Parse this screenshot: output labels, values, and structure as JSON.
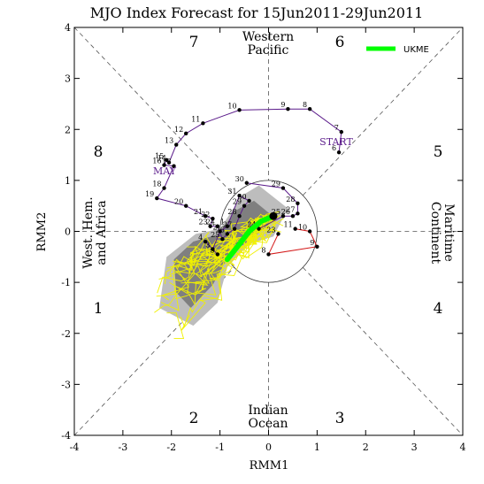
{
  "chart_data": {
    "type": "scatter",
    "title": "MJO Index Forecast for 15Jun2011-29Jun2011",
    "xlabel": "RMM1",
    "ylabel": "RMM2",
    "xlim": [
      -4,
      4
    ],
    "ylim": [
      -4,
      4
    ],
    "xticks": [
      "-4",
      "-3",
      "-2",
      "-1",
      "0",
      "1",
      "2",
      "3",
      "4"
    ],
    "yticks": [
      "-4",
      "-3",
      "-2",
      "-1",
      "0",
      "1",
      "2",
      "3",
      "4"
    ],
    "phase_numbers": [
      "1",
      "2",
      "3",
      "4",
      "5",
      "6",
      "7",
      "8"
    ],
    "region_labels": {
      "top": [
        "Western",
        "Pacific"
      ],
      "bottom": [
        "Indian",
        "Ocean"
      ],
      "left": [
        "West. Hem.",
        "and Africa"
      ],
      "right": [
        "Maritime",
        "Continent"
      ]
    },
    "legend": {
      "label": "UKME",
      "color": "#00ff00",
      "position": "top-right"
    },
    "observed_labels": {
      "start": "START",
      "month": "MAY"
    },
    "observed": {
      "color": "#5a1a8a",
      "points": [
        {
          "d": "6",
          "x": 1.45,
          "y": 1.55
        },
        {
          "d": "7",
          "x": 1.5,
          "y": 1.95
        },
        {
          "d": "8",
          "x": 0.85,
          "y": 2.4
        },
        {
          "d": "9",
          "x": 0.4,
          "y": 2.4
        },
        {
          "d": "10",
          "x": -0.6,
          "y": 2.38
        },
        {
          "d": "11",
          "x": -1.35,
          "y": 2.12
        },
        {
          "d": "12",
          "x": -1.7,
          "y": 1.92
        },
        {
          "d": "13",
          "x": -1.9,
          "y": 1.7
        },
        {
          "d": "14",
          "x": -2.05,
          "y": 1.35
        },
        {
          "d": "15",
          "x": -2.1,
          "y": 1.4
        },
        {
          "d": "16",
          "x": -2.15,
          "y": 1.3
        },
        {
          "d": "17",
          "x": -1.95,
          "y": 1.28
        },
        {
          "d": "18",
          "x": -2.15,
          "y": 0.85
        },
        {
          "d": "19",
          "x": -2.3,
          "y": 0.65
        },
        {
          "d": "20",
          "x": -1.7,
          "y": 0.5
        },
        {
          "d": "21",
          "x": -1.3,
          "y": 0.3
        },
        {
          "d": "22",
          "x": -1.15,
          "y": 0.25
        },
        {
          "d": "23",
          "x": -1.2,
          "y": 0.1
        },
        {
          "d": "24",
          "x": -1.05,
          "y": 0.1
        },
        {
          "d": "25",
          "x": -0.95,
          "y": -0.15
        },
        {
          "d": "26",
          "x": -0.85,
          "y": -0.05
        },
        {
          "d": "27",
          "x": -0.7,
          "y": 0.05
        },
        {
          "d": "28",
          "x": -0.6,
          "y": 0.3
        },
        {
          "d": "29",
          "x": -0.5,
          "y": 0.5
        },
        {
          "d": "30",
          "x": -0.4,
          "y": 0.6
        },
        {
          "d": "31",
          "x": -0.6,
          "y": 0.7
        },
        {
          "d": "1",
          "x": -0.85,
          "y": 0.1
        },
        {
          "d": "2",
          "x": -1.0,
          "y": 0.0
        },
        {
          "d": "3",
          "x": -1.15,
          "y": -0.35
        },
        {
          "d": "4",
          "x": -1.3,
          "y": -0.2
        },
        {
          "d": "5",
          "x": -1.05,
          "y": -0.45
        }
      ]
    },
    "analysis": {
      "color": "#5a1a8a",
      "points": [
        {
          "d": "30",
          "x": -0.45,
          "y": 0.95
        },
        {
          "d": "29",
          "x": 0.3,
          "y": 0.85
        },
        {
          "d": "28",
          "x": 0.6,
          "y": 0.55
        },
        {
          "d": "27",
          "x": 0.6,
          "y": 0.35
        },
        {
          "d": "26",
          "x": 0.5,
          "y": 0.3
        },
        {
          "d": "25",
          "x": 0.3,
          "y": 0.3
        },
        {
          "d": "24",
          "x": -0.2,
          "y": 0.05
        }
      ]
    },
    "ensemble_mean": {
      "color": "#d41a1a",
      "points": [
        {
          "d": "11",
          "x": 0.55,
          "y": 0.05
        },
        {
          "d": "10",
          "x": 0.85,
          "y": 0.0
        },
        {
          "d": "9",
          "x": 1.0,
          "y": -0.3
        },
        {
          "d": "8",
          "x": 0.0,
          "y": -0.45
        },
        {
          "d": "23",
          "x": 0.2,
          "y": -0.05
        }
      ]
    },
    "ukme_forecast": {
      "name": "UKME",
      "color": "#00ff00",
      "points": [
        {
          "x": 0.1,
          "y": 0.3
        },
        {
          "x": -0.15,
          "y": 0.2
        },
        {
          "x": -0.4,
          "y": 0.0
        },
        {
          "x": -0.6,
          "y": -0.25
        },
        {
          "x": -0.85,
          "y": -0.55
        }
      ]
    },
    "ensemble_members": {
      "color": "#f0f000",
      "count": 24
    },
    "shading": {
      "outer_color": "#bdbdbd",
      "inner_color": "#7f7f7f"
    }
  }
}
